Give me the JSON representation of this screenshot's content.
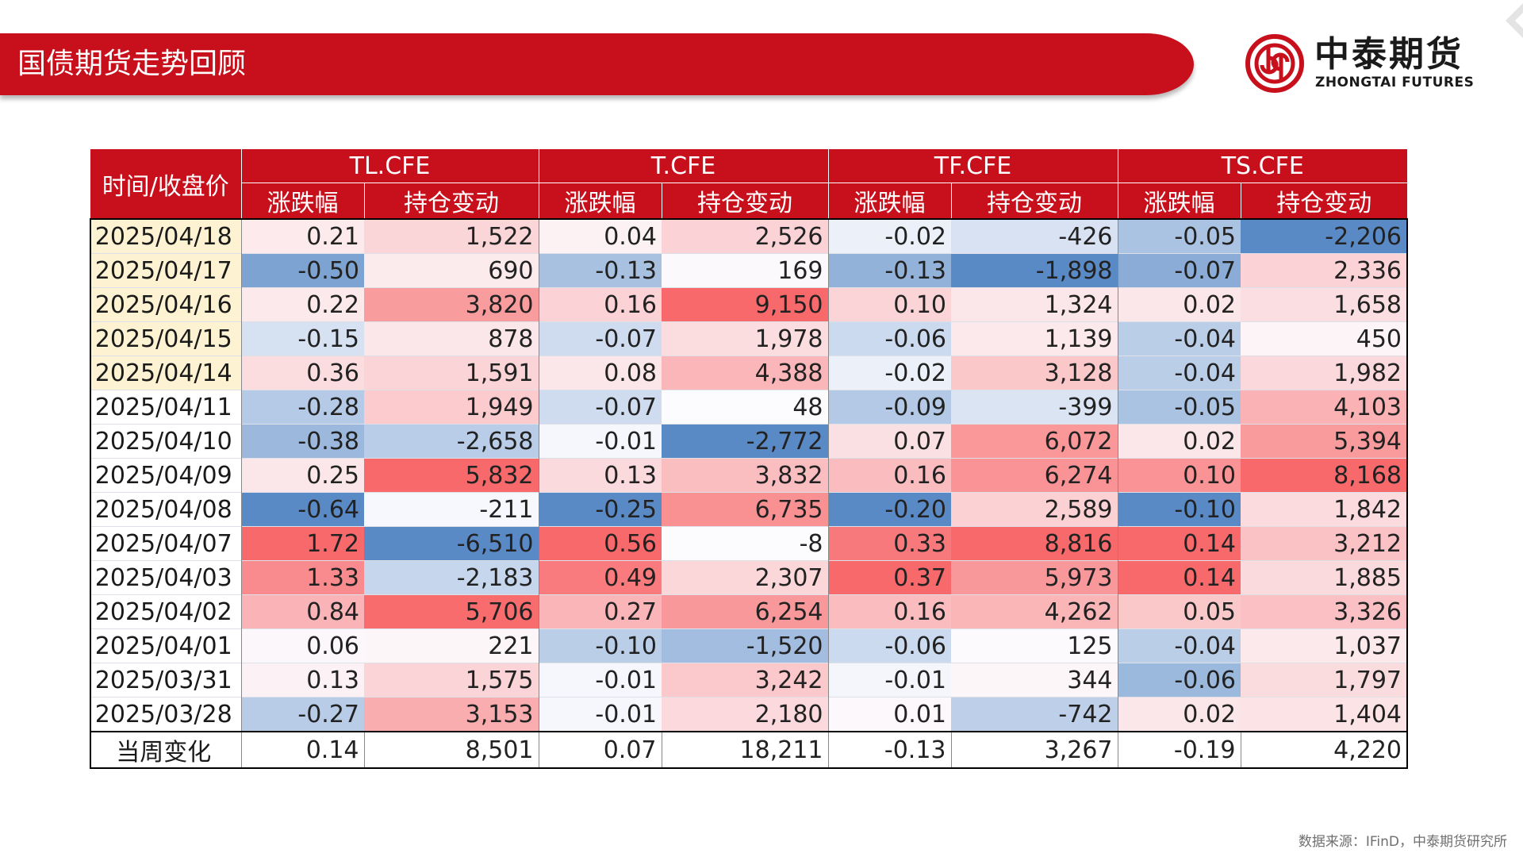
{
  "header": {
    "title": "国债期货走势回顾",
    "logo_cn": "中泰期货",
    "logo_en": "ZHONGTAI FUTURES"
  },
  "table": {
    "corner_label": "时间/收盘价",
    "instruments": [
      "TL.CFE",
      "T.CFE",
      "TF.CFE",
      "TS.CFE"
    ],
    "sub_columns": [
      "涨跌幅",
      "持仓变动"
    ],
    "rows": [
      {
        "date": "2025/04/18",
        "values": [
          "0.21",
          "1,522",
          "0.04",
          "2,526",
          "-0.02",
          "-426",
          "-0.05",
          "-2,206"
        ],
        "highlight": true
      },
      {
        "date": "2025/04/17",
        "values": [
          "-0.50",
          "690",
          "-0.13",
          "169",
          "-0.13",
          "-1,898",
          "-0.07",
          "2,336"
        ],
        "highlight": true
      },
      {
        "date": "2025/04/16",
        "values": [
          "0.22",
          "3,820",
          "0.16",
          "9,150",
          "0.10",
          "1,324",
          "0.02",
          "1,658"
        ],
        "highlight": true
      },
      {
        "date": "2025/04/15",
        "values": [
          "-0.15",
          "878",
          "-0.07",
          "1,978",
          "-0.06",
          "1,139",
          "-0.04",
          "450"
        ],
        "highlight": true
      },
      {
        "date": "2025/04/14",
        "values": [
          "0.36",
          "1,591",
          "0.08",
          "4,388",
          "-0.02",
          "3,128",
          "-0.04",
          "1,982"
        ],
        "highlight": true
      },
      {
        "date": "2025/04/11",
        "values": [
          "-0.28",
          "1,949",
          "-0.07",
          "48",
          "-0.09",
          "-399",
          "-0.05",
          "4,103"
        ],
        "highlight": false
      },
      {
        "date": "2025/04/10",
        "values": [
          "-0.38",
          "-2,658",
          "-0.01",
          "-2,772",
          "0.07",
          "6,072",
          "0.02",
          "5,394"
        ],
        "highlight": false
      },
      {
        "date": "2025/04/09",
        "values": [
          "0.25",
          "5,832",
          "0.13",
          "3,832",
          "0.16",
          "6,274",
          "0.10",
          "8,168"
        ],
        "highlight": false
      },
      {
        "date": "2025/04/08",
        "values": [
          "-0.64",
          "-211",
          "-0.25",
          "6,735",
          "-0.20",
          "2,589",
          "-0.10",
          "1,842"
        ],
        "highlight": false
      },
      {
        "date": "2025/04/07",
        "values": [
          "1.72",
          "-6,510",
          "0.56",
          "-8",
          "0.33",
          "8,816",
          "0.14",
          "3,212"
        ],
        "highlight": false
      },
      {
        "date": "2025/04/03",
        "values": [
          "1.33",
          "-2,183",
          "0.49",
          "2,307",
          "0.37",
          "5,973",
          "0.14",
          "1,885"
        ],
        "highlight": false
      },
      {
        "date": "2025/04/02",
        "values": [
          "0.84",
          "5,706",
          "0.27",
          "6,254",
          "0.16",
          "4,262",
          "0.05",
          "3,326"
        ],
        "highlight": false
      },
      {
        "date": "2025/04/01",
        "values": [
          "0.06",
          "221",
          "-0.10",
          "-1,520",
          "-0.06",
          "125",
          "-0.04",
          "1,037"
        ],
        "highlight": false
      },
      {
        "date": "2025/03/31",
        "values": [
          "0.13",
          "1,575",
          "-0.01",
          "3,242",
          "-0.01",
          "344",
          "-0.06",
          "1,797"
        ],
        "highlight": false
      },
      {
        "date": "2025/03/28",
        "values": [
          "-0.27",
          "3,153",
          "-0.01",
          "2,180",
          "0.01",
          "-742",
          "0.02",
          "1,404"
        ],
        "highlight": false
      }
    ],
    "total": {
      "label": "当周变化",
      "values": [
        "0.14",
        "8,501",
        "0.07",
        "18,211",
        "-0.13",
        "3,267",
        "-0.19",
        "4,220"
      ]
    }
  },
  "colors": {
    "brand_red": "#c8101c",
    "date_highlight": "#fdf3d2",
    "positive_max": "#f8696b",
    "negative_max": "#5a8ac6",
    "neutral": "#fcfcff"
  },
  "source": "数据来源：IFinD，中泰期货研究所"
}
